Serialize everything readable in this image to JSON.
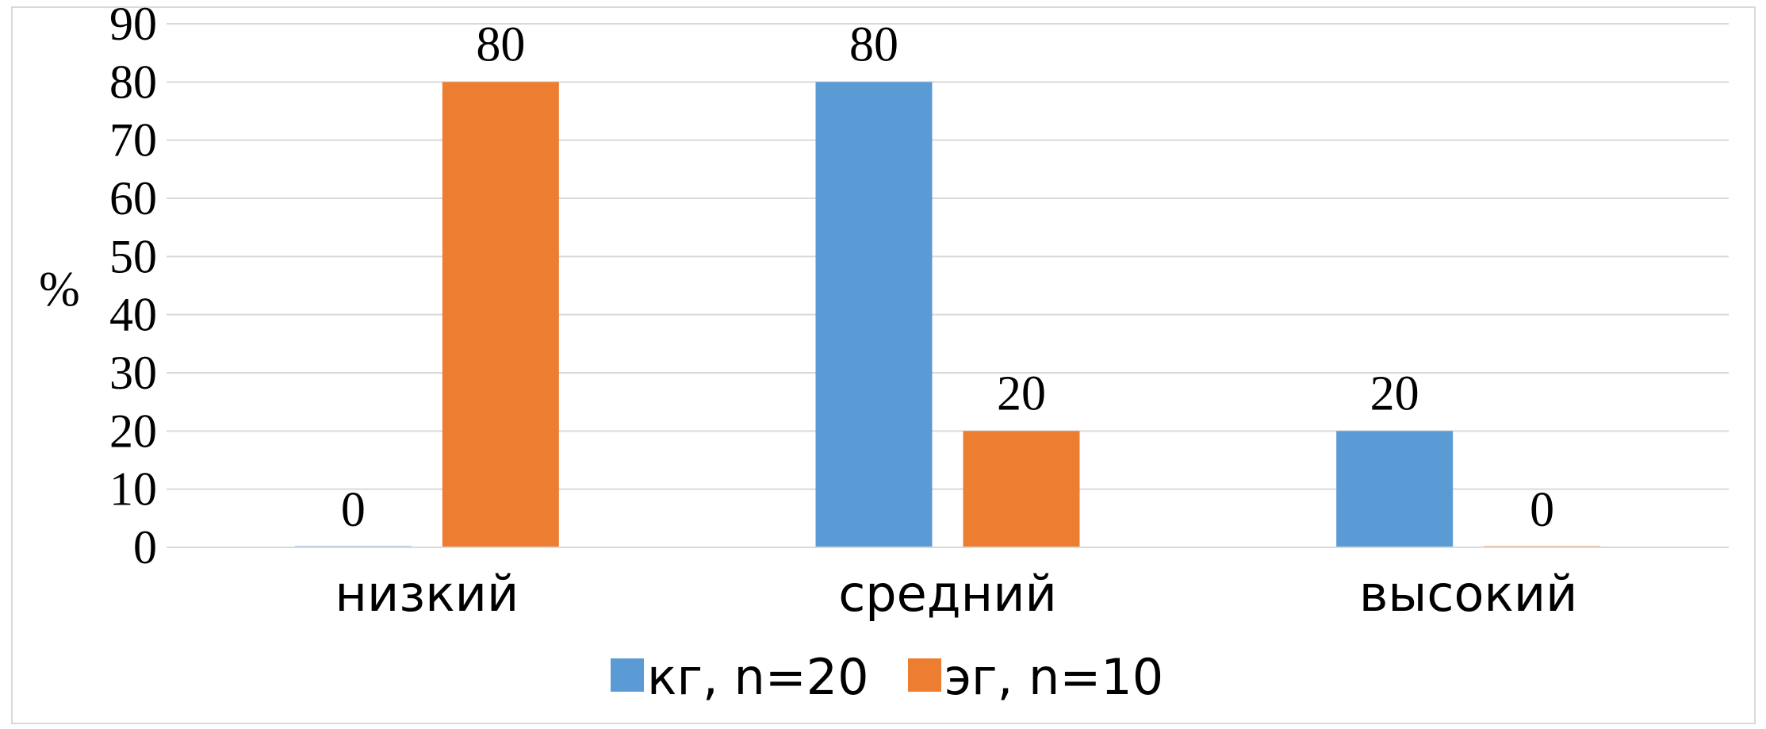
{
  "chart_data": {
    "type": "bar",
    "categories": [
      "низкий",
      "средний",
      "высокий"
    ],
    "series": [
      {
        "name": "кг, n=20",
        "values": [
          0,
          80,
          20
        ],
        "color": "#5b9bd5"
      },
      {
        "name": "эг, n=10",
        "values": [
          80,
          20,
          0
        ],
        "color": "#ed7d31"
      }
    ],
    "ylabel": "%",
    "ylim": [
      0,
      90
    ],
    "yticks": [
      0,
      10,
      20,
      30,
      40,
      50,
      60,
      70,
      80,
      90
    ],
    "grid": true,
    "gridline_color": "#d9d9d9",
    "data_labels": true,
    "legend_position": "bottom"
  }
}
